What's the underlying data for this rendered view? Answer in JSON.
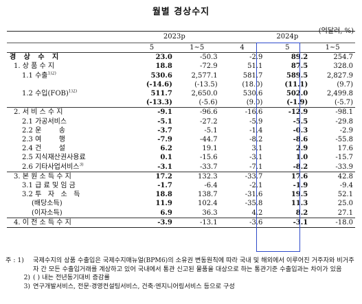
{
  "title": "월별 경상수지",
  "unit": "(억달러, %)",
  "header": {
    "years": [
      "2023p",
      "2024p"
    ],
    "months": [
      "5",
      "1~5",
      "4",
      "5",
      "1~5"
    ]
  },
  "rows": [
    {
      "label": "경 상 수 지",
      "indent": 0,
      "sep": true,
      "values": [
        "23.0",
        "-50.3",
        "-2.9",
        "89.2",
        "254.7"
      ]
    },
    {
      "label": "1. 상 품 수 지",
      "indent": 1,
      "sep": false,
      "values": [
        "18.8",
        "-72.9",
        "51.1",
        "87.5",
        "328.0"
      ]
    },
    {
      "label": "1.1 수출",
      "sup": "1)2)",
      "indent": 2,
      "sep": false,
      "values": [
        "530.6",
        "2,577.1",
        "581.7",
        "589.5",
        "2,827.9"
      ]
    },
    {
      "label": "",
      "indent": 2,
      "sep": false,
      "values": [
        "(-14.6)",
        "(-13.5)",
        "(18.0)",
        "(11.1)",
        "(9.7)"
      ]
    },
    {
      "label": "1.2 수입(FOB)",
      "sup": "1)2)",
      "indent": 2,
      "sep": false,
      "values": [
        "511.7",
        "2,650.0",
        "530.6",
        "502.0",
        "2,499.8"
      ]
    },
    {
      "label": "",
      "indent": 2,
      "sep": false,
      "values": [
        "(-13.3)",
        "(-5.6)",
        "(9.0)",
        "(-1.9)",
        "(-5.7)"
      ]
    },
    {
      "label": "2. 서 비 스 수 지",
      "indent": 1,
      "sep": true,
      "values": [
        "-9.1",
        "-96.6",
        "-16.6",
        "-12.9",
        "-98.1"
      ]
    },
    {
      "label": "2.1 가공서비스",
      "indent": 2,
      "sep": false,
      "values": [
        "-5.1",
        "-27.2",
        "-5.9",
        "-5.5",
        "-29.8"
      ]
    },
    {
      "label": "2.2 운        송",
      "indent": 2,
      "sep": false,
      "values": [
        "-3.7",
        "-5.1",
        "-1.4",
        "-0.3",
        "-2.9"
      ]
    },
    {
      "label": "2.3 여        행",
      "indent": 2,
      "sep": false,
      "values": [
        "-7.9",
        "-44.7",
        "-8.2",
        "-8.6",
        "-55.8"
      ]
    },
    {
      "label": "2.4 건        설",
      "indent": 2,
      "sep": false,
      "values": [
        "6.2",
        "19.1",
        "3.1",
        "2.9",
        "17.6"
      ]
    },
    {
      "label": "2.5 지식재산권사용료",
      "indent": 2,
      "sep": false,
      "values": [
        "0.1",
        "-15.6",
        "-3.1",
        "1.0",
        "-15.7"
      ]
    },
    {
      "label": "2.6 기타사업서비스",
      "sup": "3)",
      "indent": 2,
      "sep": false,
      "values": [
        "-3.1",
        "-33.7",
        "-7.1",
        "-8.2",
        "-33.9"
      ]
    },
    {
      "label": "3. 본 원 소 득 수 지",
      "indent": 1,
      "sep": true,
      "values": [
        "17.2",
        "132.3",
        "-33.7",
        "17.6",
        "42.8"
      ]
    },
    {
      "label": "3.1 급 료 및 임 금",
      "indent": 2,
      "sep": false,
      "values": [
        "-1.7",
        "-6.4",
        "-2.1",
        "-1.9",
        "-9.4"
      ]
    },
    {
      "label": "3.2 투   자   소   득",
      "indent": 2,
      "sep": false,
      "values": [
        "18.8",
        "138.7",
        "-31.6",
        "19.5",
        "52.1"
      ]
    },
    {
      "label": "(배당소득)",
      "indent": 3,
      "sep": false,
      "values": [
        "11.9",
        "102.4",
        "-35.8",
        "11.3",
        "25.0"
      ]
    },
    {
      "label": "(이자소득)",
      "indent": 3,
      "sep": false,
      "values": [
        "6.9",
        "36.3",
        "4.2",
        "8.2",
        "27.1"
      ]
    },
    {
      "label": "4. 이 전 소 득 수 지",
      "indent": 1,
      "sep": true,
      "last": true,
      "values": [
        "-3.9",
        "-13.1",
        "-3.6",
        "-3.1",
        "-18.0"
      ]
    }
  ],
  "notes": [
    {
      "key": "주 : 1)",
      "text": "국제수지의 상품 수출입은 국제수지매뉴얼(BPM6)의 소유권 변동원칙에 따라 국내 및 해외에서 이루어진 거주자와 비거주자 간 모든 수출입거래를 계상하고 있어 국내에서 통관 신고된 물품을 대상으로 하는 통관기준 수출입과는 차이가 있음"
    },
    {
      "key": "2)",
      "text": "(  ) 내는 전년동기대비 증감률"
    },
    {
      "key": "3)",
      "text": "연구개발서비스, 전문·경영컨설팅서비스, 건축·엔지니어링서비스 등으로 구성"
    }
  ]
}
